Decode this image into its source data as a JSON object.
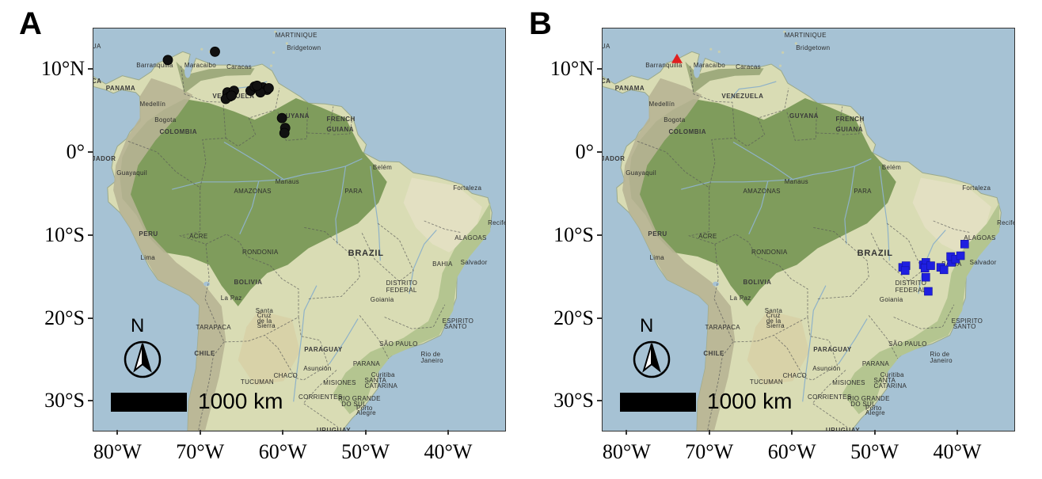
{
  "panels": [
    {
      "letter": "A",
      "points": {
        "shape": "circle",
        "color": "#111111",
        "coords": [
          [
            -74.0,
            11.2
          ],
          [
            -68.3,
            12.2
          ],
          [
            -66.8,
            7.3
          ],
          [
            -66.5,
            6.8
          ],
          [
            -66.0,
            7.5
          ],
          [
            -67.0,
            6.5
          ],
          [
            -66.3,
            6.9
          ],
          [
            -64.0,
            7.5
          ],
          [
            -63.5,
            8.0
          ],
          [
            -63.0,
            7.7
          ],
          [
            -62.5,
            7.9
          ],
          [
            -62.0,
            7.6
          ],
          [
            -62.8,
            7.3
          ],
          [
            -63.2,
            8.1
          ],
          [
            -61.8,
            7.8
          ],
          [
            -60.2,
            4.2
          ],
          [
            -59.8,
            3.0
          ],
          [
            -59.9,
            2.4
          ]
        ]
      },
      "places": {
        "show_all": true
      }
    },
    {
      "letter": "B",
      "points": {
        "shape": "square",
        "color": "#1f1fe0",
        "coords": [
          [
            -46.7,
            -13.8
          ],
          [
            -46.3,
            -13.6
          ],
          [
            -46.4,
            -14.2
          ],
          [
            -44.2,
            -13.5
          ],
          [
            -43.9,
            -13.2
          ],
          [
            -44.0,
            -13.9
          ],
          [
            -43.3,
            -13.6
          ],
          [
            -42.1,
            -13.8
          ],
          [
            -41.7,
            -14.1
          ],
          [
            -40.8,
            -13.2
          ],
          [
            -40.9,
            -12.5
          ],
          [
            -40.3,
            -12.8
          ],
          [
            -39.7,
            -12.4
          ],
          [
            -39.2,
            -11.0
          ],
          [
            -43.9,
            -15.0
          ],
          [
            -43.6,
            -16.7
          ]
        ],
        "triangle": {
          "coord": [
            -74.0,
            11.3
          ],
          "color": "#e02020"
        }
      }
    }
  ],
  "axes": {
    "y_labels": [
      "10°N",
      "0°",
      "10°S",
      "20°S",
      "30°S"
    ],
    "y_values": [
      10,
      0,
      -10,
      -20,
      -30
    ],
    "x_labels": [
      "80°W",
      "70°W",
      "60°W",
      "50°W",
      "40°W"
    ],
    "x_values": [
      -80,
      -70,
      -60,
      -50,
      -40
    ]
  },
  "scale": {
    "label": "1000 km"
  },
  "north_label": "N",
  "places": [
    {
      "text": "MARTINIQUE",
      "lon": -61.0,
      "lat": 14.6,
      "cls": ""
    },
    {
      "text": "Bridgetown",
      "lon": -59.6,
      "lat": 13.1,
      "cls": ""
    },
    {
      "text": "UA",
      "lon": -83.2,
      "lat": 13.3,
      "cls": ""
    },
    {
      "text": "Barranquilla",
      "lon": -77.8,
      "lat": 11.0,
      "cls": ""
    },
    {
      "text": "Maracaibo",
      "lon": -72.0,
      "lat": 11.0,
      "cls": ""
    },
    {
      "text": "Caracas",
      "lon": -66.9,
      "lat": 10.8,
      "cls": ""
    },
    {
      "text": "CA",
      "lon": -83.2,
      "lat": 9.1,
      "cls": "mid"
    },
    {
      "text": "PANAMA",
      "lon": -81.5,
      "lat": 8.2,
      "cls": "mid"
    },
    {
      "text": "Medellín",
      "lon": -77.4,
      "lat": 6.3,
      "cls": ""
    },
    {
      "text": "VENEZUELA",
      "lon": -68.6,
      "lat": 7.3,
      "cls": "mid"
    },
    {
      "text": "GUYANA",
      "lon": -60.4,
      "lat": 4.9,
      "cls": "mid"
    },
    {
      "text": "FRENCH",
      "lon": -54.8,
      "lat": 4.5,
      "cls": "mid"
    },
    {
      "text": "GUIANA",
      "lon": -54.8,
      "lat": 3.3,
      "cls": "mid"
    },
    {
      "text": "Bogota",
      "lon": -75.6,
      "lat": 4.4,
      "cls": ""
    },
    {
      "text": "COLOMBIA",
      "lon": -75.0,
      "lat": 3.0,
      "cls": "mid"
    },
    {
      "text": "JADOR",
      "lon": -83.2,
      "lat": -0.3,
      "cls": "mid"
    },
    {
      "text": "Guayaquil",
      "lon": -80.2,
      "lat": -2.0,
      "cls": ""
    },
    {
      "text": "Manaus",
      "lon": -61.0,
      "lat": -3.0,
      "cls": ""
    },
    {
      "text": "Belém",
      "lon": -49.2,
      "lat": -1.3,
      "cls": ""
    },
    {
      "text": "Fortaleza",
      "lon": -39.5,
      "lat": -3.8,
      "cls": ""
    },
    {
      "text": "AMAZONAS",
      "lon": -66.0,
      "lat": -4.2,
      "cls": ""
    },
    {
      "text": "PARA",
      "lon": -52.6,
      "lat": -4.2,
      "cls": ""
    },
    {
      "text": "Recife",
      "lon": -35.3,
      "lat": -8.0,
      "cls": ""
    },
    {
      "text": "PERU",
      "lon": -77.5,
      "lat": -9.3,
      "cls": "mid"
    },
    {
      "text": "ACRE",
      "lon": -71.4,
      "lat": -9.6,
      "cls": ""
    },
    {
      "text": "RONDONIA",
      "lon": -65.0,
      "lat": -11.5,
      "cls": ""
    },
    {
      "text": "BRAZIL",
      "lon": -52.2,
      "lat": -11.5,
      "cls": "big"
    },
    {
      "text": "BAHIA",
      "lon": -42.0,
      "lat": -13.0,
      "cls": ""
    },
    {
      "text": "ALAGOAS",
      "lon": -39.3,
      "lat": -9.8,
      "cls": ""
    },
    {
      "text": "Salvador",
      "lon": -38.6,
      "lat": -12.8,
      "cls": ""
    },
    {
      "text": "Lima",
      "lon": -77.3,
      "lat": -12.2,
      "cls": ""
    },
    {
      "text": "BOLIVIA",
      "lon": -66.0,
      "lat": -15.2,
      "cls": "mid"
    },
    {
      "text": "DISTRITO",
      "lon": -47.6,
      "lat": -15.3,
      "cls": ""
    },
    {
      "text": "FEDERAL",
      "lon": -47.6,
      "lat": -16.1,
      "cls": ""
    },
    {
      "text": "Goiania",
      "lon": -49.5,
      "lat": -17.3,
      "cls": ""
    },
    {
      "text": "La Paz",
      "lon": -67.6,
      "lat": -17.1,
      "cls": ""
    },
    {
      "text": "ESPIRITO",
      "lon": -40.8,
      "lat": -19.8,
      "cls": ""
    },
    {
      "text": "SANTO",
      "lon": -40.6,
      "lat": -20.5,
      "cls": ""
    },
    {
      "text": "Santa",
      "lon": -63.4,
      "lat": -18.6,
      "cls": ""
    },
    {
      "text": "Cruz",
      "lon": -63.2,
      "lat": -19.2,
      "cls": ""
    },
    {
      "text": "de la",
      "lon": -63.2,
      "lat": -19.8,
      "cls": ""
    },
    {
      "text": "Sierra",
      "lon": -63.2,
      "lat": -20.4,
      "cls": ""
    },
    {
      "text": "TARAPACA",
      "lon": -70.6,
      "lat": -20.6,
      "cls": ""
    },
    {
      "text": "CHILE",
      "lon": -70.8,
      "lat": -23.8,
      "cls": "mid"
    },
    {
      "text": "PARAGUAY",
      "lon": -57.5,
      "lat": -23.3,
      "cls": "mid"
    },
    {
      "text": "SÃO PAULO",
      "lon": -48.4,
      "lat": -22.6,
      "cls": ""
    },
    {
      "text": "Rio de",
      "lon": -43.4,
      "lat": -23.9,
      "cls": ""
    },
    {
      "text": "Janeiro",
      "lon": -43.4,
      "lat": -24.6,
      "cls": ""
    },
    {
      "text": "CHACO",
      "lon": -61.2,
      "lat": -26.4,
      "cls": ""
    },
    {
      "text": "Asunción",
      "lon": -57.6,
      "lat": -25.6,
      "cls": ""
    },
    {
      "text": "PARANA",
      "lon": -51.6,
      "lat": -25.0,
      "cls": ""
    },
    {
      "text": "Curitiba",
      "lon": -49.4,
      "lat": -26.3,
      "cls": ""
    },
    {
      "text": "SANTA",
      "lon": -50.2,
      "lat": -27.0,
      "cls": ""
    },
    {
      "text": "CATARINA",
      "lon": -50.2,
      "lat": -27.7,
      "cls": ""
    },
    {
      "text": "MISIONES",
      "lon": -55.2,
      "lat": -27.3,
      "cls": ""
    },
    {
      "text": "TUCUMAN",
      "lon": -65.2,
      "lat": -27.2,
      "cls": ""
    },
    {
      "text": "RIO GRANDE",
      "lon": -53.4,
      "lat": -29.2,
      "cls": ""
    },
    {
      "text": "DO SUL",
      "lon": -53.0,
      "lat": -29.9,
      "cls": ""
    },
    {
      "text": "CORRIENTES",
      "lon": -58.2,
      "lat": -29.0,
      "cls": ""
    },
    {
      "text": "Porto",
      "lon": -51.2,
      "lat": -30.3,
      "cls": ""
    },
    {
      "text": "Alegre",
      "lon": -51.2,
      "lat": -30.9,
      "cls": ""
    },
    {
      "text": "URUGUAY",
      "lon": -56.0,
      "lat": -33.0,
      "cls": "mid"
    }
  ]
}
